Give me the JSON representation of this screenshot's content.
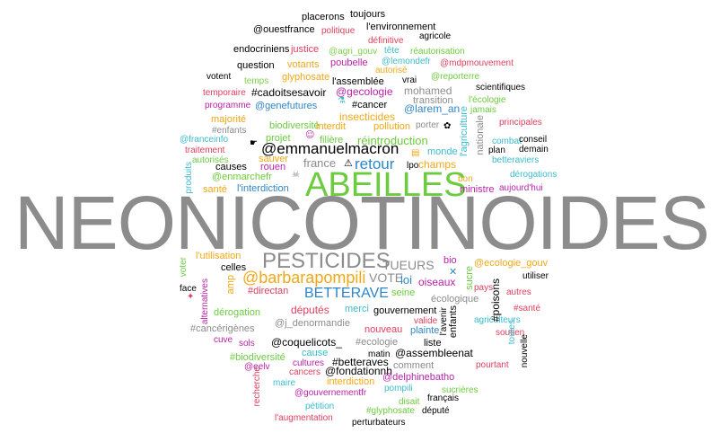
{
  "colors": {
    "black": "#000000",
    "grey": "#8c8c8c",
    "green": "#6ccb3e",
    "blue": "#2e86c9",
    "magenta": "#bb22a9",
    "orange": "#f0a818",
    "red": "#e0405e",
    "teal": "#3bbccd",
    "lightgreen": "#7fd04a"
  },
  "words": {
    "neonicotinoides": "NEONICOTINOIDES",
    "abeilles": "ABEILLES",
    "pesticides": "PESTICIDES",
    "emmanuelmacron": "@emmanuelmacron",
    "barbarapompili": "@barbarapompili",
    "betterave": "BETTERAVE",
    "retour": "retour",
    "tueurs": "TUEURS",
    "vote": "VOTE",
    "reintroduction": "réintroduction",
    "insecticides": "insecticides",
    "assemblee": "l'assemblée",
    "cadoitsesavoir": "#cadoitsesavoir",
    "cancer": "#cancer",
    "genefutures": "@genefutures",
    "larem_an": "@larem_an",
    "gecologie": "@gecologie",
    "mohamed": "mohamed",
    "transition": "transition",
    "pollution": "pollution",
    "interdit": "interdit",
    "majorite": "majorité",
    "biodiversite": "biodiversité",
    "enfants": "#enfants",
    "projet": "projet",
    "filiere": "filière",
    "monde": "monde",
    "porter": "porter",
    "france": "france",
    "lpo": "lpo",
    "champs": "champs",
    "bon": "bon",
    "ministre": "ministre",
    "aujourdhui": "aujourd'hui",
    "franceinfo": "@franceinfo",
    "traitement": "traitement",
    "autorises": "autorisés",
    "causes": "causes",
    "rouen": "rouen",
    "enmarchefr": "@enmarchefr",
    "sauver": "sauver",
    "sante": "santé",
    "linterdiction": "l'interdiction",
    "produits": "produits",
    "placerons": "placerons",
    "toujours": "toujours",
    "ouestfrance": "@ouestfrance",
    "environnement": "l'environnement",
    "politique": "politique",
    "agricole": "agricole",
    "definitive": "définitive",
    "endocriniens": "endocriniens",
    "justice": "justice",
    "agri_gouv": "@agri_gouv",
    "tete": "tête",
    "reautorisation": "réautorisation",
    "question": "question",
    "votants": "votants",
    "poubelle": "poubelle",
    "lemondefr": "@lemondefr",
    "mdpmouvement": "@mdpmouvement",
    "autorise": "autorisé",
    "votent": "votent",
    "glyphosate": "glyphosate",
    "reporterre": "@reporterre",
    "temps": "temps",
    "vrai": "vrai",
    "scientifiques": "scientifiques",
    "temporaire": "temporaire",
    "lecologie": "l'écologie",
    "programme": "programme",
    "jamais": "jamais",
    "principales": "principales",
    "lagriculture": "l'agriculture",
    "nationale": "nationale",
    "combat": "combat",
    "conseil": "conseil",
    "plan": "plan",
    "demain": "demain",
    "betteraviers": "betteraviers",
    "derogations": "dérogations",
    "lutilisation": "l'utilisation",
    "celles": "celles",
    "bio": "bio",
    "ecologie_gouv": "@ecologie_gouv",
    "utiliser": "utiliser",
    "voter": "voter",
    "amp": "amp",
    "directan": "#directan",
    "loi": "loi",
    "oiseaux": "oiseaux",
    "pays": "pays",
    "face": "face",
    "seine": "seine",
    "sucre": "sucre",
    "autres": "autres",
    "alternatives": "alternatives",
    "ecologique": "écologique",
    "poisons": "#poisons",
    "sante_tag": "#santé",
    "derogation": "dérogation",
    "deputes": "députés",
    "merci": "merci",
    "gouvernement": "gouvernement",
    "j_denormandie": "@j_denormandie",
    "valide": "valide",
    "agriculteurs": "agriculteurs",
    "cancerigenes": "#cancérigènes",
    "nouveau": "nouveau",
    "plainte": "plainte",
    "lavenir": "l'avenir",
    "enfants_plain": "enfants",
    "soutien": "soutien",
    "cuve": "cuve",
    "sols": "sols",
    "coquelicots": "@coquelicots_",
    "ecologie_tag": "#ecologie",
    "liste": "liste",
    "toutes": "toutes",
    "nouvelle": "nouvelle",
    "cause": "cause",
    "matin": "matin",
    "assembleenat": "@assembleenat",
    "biodiversite_tag": "#biodiversité",
    "betteraves_tag": "#betteraves",
    "eelv": "@eelv",
    "cultures": "cultures",
    "comment": "comment",
    "pourtant": "pourtant",
    "cancers": "cancers",
    "fondationnh": "@fondationnh",
    "recherche": "recherche",
    "maire": "maire",
    "interdiction": "interdiction",
    "delphinebatho": "@delphinebatho",
    "pompili": "pompili",
    "sucrieres": "sucrières",
    "gouvernementfr": "@gouvernementfr",
    "francais": "français",
    "petition": "pétition",
    "disait": "disait",
    "glyphosate_tag": "#glyphosate",
    "depute": "député",
    "augmentation": "l'augmentation",
    "perturbateurs": "perturbateurs"
  }
}
